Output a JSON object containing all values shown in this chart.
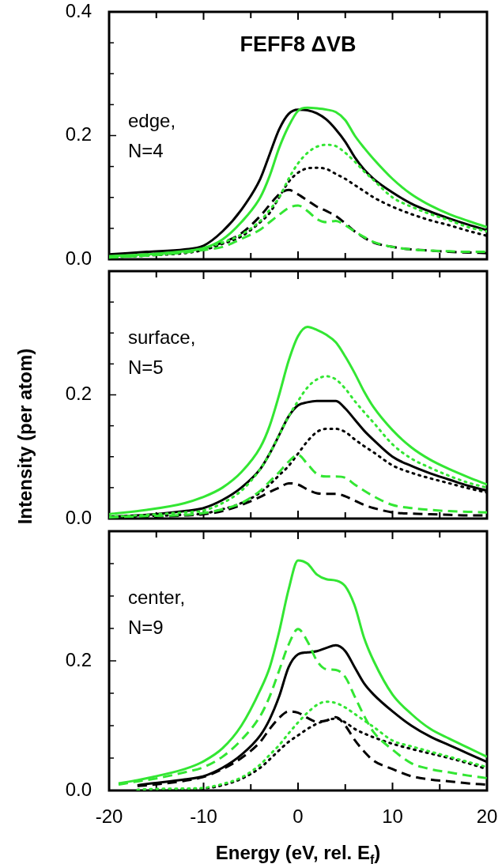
{
  "chart_data": [
    {
      "type": "line",
      "title": "FEFF8 ΔVB",
      "annotations": [
        "edge,\nN=4"
      ],
      "tick_labels": "y",
      "xlim": [
        -20,
        20
      ],
      "xticks": [
        -20,
        {
          "value": -15,
          "label": null
        },
        -10,
        {
          "value": -5,
          "label": null
        },
        0,
        {
          "value": 5,
          "label": null
        },
        10,
        {
          "value": 15,
          "label": null
        },
        20
      ],
      "ylim": [
        0,
        0.4
      ],
      "yticks": [
        {
          "value": 0,
          "label": "0.0"
        },
        {
          "value": 0.05,
          "label": null
        },
        {
          "value": 0.1,
          "label": null
        },
        {
          "value": 0.15,
          "label": null
        },
        {
          "value": 0.2,
          "label": "0.2"
        },
        {
          "value": 0.25,
          "label": null
        },
        {
          "value": 0.3,
          "label": null
        },
        {
          "value": 0.35,
          "label": null
        },
        {
          "value": 0.4,
          "label": "0.4"
        }
      ],
      "x": [
        -20,
        -16,
        -12,
        -10,
        -8,
        -6,
        -4,
        -3,
        -2,
        -1,
        0,
        1,
        2,
        3,
        4,
        5,
        6,
        7,
        8,
        10,
        12,
        14,
        16,
        18,
        20
      ],
      "series": [
        {
          "color": "#33e633",
          "line_style": "solid",
          "values": [
            0.005,
            0.008,
            0.013,
            0.018,
            0.032,
            0.06,
            0.1,
            0.135,
            0.18,
            0.215,
            0.24,
            0.245,
            0.244,
            0.242,
            0.238,
            0.225,
            0.2,
            0.18,
            0.162,
            0.13,
            0.105,
            0.087,
            0.073,
            0.062,
            0.052
          ]
        },
        {
          "color": "#33e633",
          "line_style": "dotted",
          "values": [
            0.003,
            0.006,
            0.012,
            0.018,
            0.027,
            0.04,
            0.062,
            0.08,
            0.1,
            0.13,
            0.155,
            0.172,
            0.182,
            0.185,
            0.183,
            0.172,
            0.158,
            0.142,
            0.128,
            0.1,
            0.085,
            0.073,
            0.063,
            0.052,
            0.045
          ]
        },
        {
          "color": "#33e633",
          "line_style": "dashed",
          "values": [
            0.003,
            0.006,
            0.011,
            0.015,
            0.02,
            0.033,
            0.048,
            0.06,
            0.072,
            0.083,
            0.087,
            0.078,
            0.065,
            0.06,
            0.062,
            0.055,
            0.045,
            0.036,
            0.028,
            0.02,
            0.016,
            0.014,
            0.013,
            0.012,
            0.012
          ]
        },
        {
          "color": "#000000",
          "line_style": "solid",
          "values": [
            0.008,
            0.012,
            0.016,
            0.022,
            0.045,
            0.08,
            0.13,
            0.17,
            0.21,
            0.235,
            0.242,
            0.241,
            0.236,
            0.226,
            0.21,
            0.19,
            0.165,
            0.145,
            0.13,
            0.108,
            0.09,
            0.077,
            0.066,
            0.056,
            0.047
          ]
        },
        {
          "color": "#000000",
          "line_style": "dotted",
          "values": [
            0.003,
            0.006,
            0.01,
            0.015,
            0.025,
            0.037,
            0.06,
            0.075,
            0.1,
            0.125,
            0.14,
            0.147,
            0.148,
            0.146,
            0.138,
            0.13,
            0.12,
            0.11,
            0.1,
            0.085,
            0.073,
            0.063,
            0.055,
            0.046,
            0.038
          ]
        },
        {
          "color": "#000000",
          "line_style": "dashed",
          "values": [
            0.004,
            0.008,
            0.013,
            0.018,
            0.027,
            0.042,
            0.07,
            0.088,
            0.105,
            0.112,
            0.105,
            0.095,
            0.085,
            0.078,
            0.07,
            0.058,
            0.045,
            0.035,
            0.027,
            0.02,
            0.016,
            0.014,
            0.012,
            0.011,
            0.01
          ]
        }
      ]
    },
    {
      "type": "line",
      "ylabel": "Intensity (per atom)",
      "annotations": [
        "surface,\nN=5"
      ],
      "tick_labels": "y",
      "xlim": [
        -20,
        20
      ],
      "xticks": [
        -20,
        {
          "value": -15,
          "label": null
        },
        -10,
        {
          "value": -5,
          "label": null
        },
        0,
        {
          "value": 5,
          "label": null
        },
        10,
        {
          "value": 15,
          "label": null
        },
        20
      ],
      "ylim": [
        0,
        0.4
      ],
      "yticks": [
        {
          "value": 0,
          "label": "0.0"
        },
        {
          "value": 0.05,
          "label": null
        },
        {
          "value": 0.1,
          "label": null
        },
        {
          "value": 0.15,
          "label": null
        },
        {
          "value": 0.2,
          "label": "0.2"
        },
        {
          "value": 0.25,
          "label": null
        },
        {
          "value": 0.3,
          "label": null
        },
        {
          "value": 0.35,
          "label": null
        },
        {
          "value": 0.4,
          "label": null
        }
      ],
      "x": [
        -20,
        -16,
        -12,
        -10,
        -8,
        -6,
        -4,
        -3,
        -2,
        -1,
        0,
        1,
        2,
        3,
        4,
        5,
        6,
        7,
        8,
        10,
        12,
        14,
        16,
        18,
        20
      ],
      "series": [
        {
          "color": "#33e633",
          "line_style": "solid",
          "values": [
            0.007,
            0.014,
            0.025,
            0.035,
            0.05,
            0.075,
            0.115,
            0.15,
            0.2,
            0.255,
            0.295,
            0.31,
            0.305,
            0.297,
            0.285,
            0.262,
            0.235,
            0.205,
            0.18,
            0.143,
            0.115,
            0.095,
            0.08,
            0.067,
            0.055
          ]
        },
        {
          "color": "#33e633",
          "line_style": "dotted",
          "values": [
            0.003,
            0.006,
            0.01,
            0.013,
            0.025,
            0.045,
            0.08,
            0.105,
            0.135,
            0.165,
            0.19,
            0.212,
            0.225,
            0.23,
            0.225,
            0.21,
            0.19,
            0.172,
            0.155,
            0.12,
            0.097,
            0.082,
            0.069,
            0.058,
            0.05
          ]
        },
        {
          "color": "#33e633",
          "line_style": "dashed",
          "values": [
            0.002,
            0.004,
            0.006,
            0.009,
            0.015,
            0.025,
            0.045,
            0.06,
            0.075,
            0.092,
            0.103,
            0.088,
            0.072,
            0.068,
            0.068,
            0.066,
            0.055,
            0.045,
            0.036,
            0.022,
            0.017,
            0.014,
            0.012,
            0.011,
            0.01
          ]
        },
        {
          "color": "#000000",
          "line_style": "solid",
          "values": [
            0.003,
            0.006,
            0.012,
            0.017,
            0.03,
            0.05,
            0.08,
            0.105,
            0.135,
            0.165,
            0.183,
            0.188,
            0.19,
            0.19,
            0.19,
            0.178,
            0.16,
            0.142,
            0.127,
            0.1,
            0.085,
            0.073,
            0.063,
            0.053,
            0.045
          ]
        },
        {
          "color": "#000000",
          "line_style": "dotted",
          "values": [
            0.002,
            0.004,
            0.006,
            0.008,
            0.015,
            0.025,
            0.042,
            0.055,
            0.07,
            0.085,
            0.105,
            0.125,
            0.14,
            0.145,
            0.145,
            0.14,
            0.128,
            0.117,
            0.107,
            0.086,
            0.074,
            0.065,
            0.057,
            0.049,
            0.042
          ]
        },
        {
          "color": "#000000",
          "line_style": "dashed",
          "values": [
            0.002,
            0.003,
            0.005,
            0.007,
            0.012,
            0.022,
            0.035,
            0.043,
            0.05,
            0.057,
            0.055,
            0.047,
            0.041,
            0.04,
            0.04,
            0.036,
            0.029,
            0.022,
            0.017,
            0.01,
            0.008,
            0.007,
            0.006,
            0.005,
            0.005
          ]
        }
      ]
    },
    {
      "type": "line",
      "xlabel": "Energy (eV, rel. E$_{f}$)",
      "annotations": [
        "center,\nN=9"
      ],
      "xlim": [
        -20,
        20
      ],
      "xticks": [
        -20,
        {
          "value": -15,
          "label": null
        },
        -10,
        {
          "value": -5,
          "label": null
        },
        0,
        {
          "value": 5,
          "label": null
        },
        10,
        {
          "value": 15,
          "label": null
        },
        20
      ],
      "ylim": [
        0,
        0.4
      ],
      "yticks": [
        {
          "value": 0,
          "label": "0.0"
        },
        {
          "value": 0.05,
          "label": null
        },
        {
          "value": 0.1,
          "label": null
        },
        {
          "value": 0.15,
          "label": null
        },
        {
          "value": 0.2,
          "label": "0.2"
        },
        {
          "value": 0.25,
          "label": null
        },
        {
          "value": 0.3,
          "label": null
        },
        {
          "value": 0.35,
          "label": null
        },
        {
          "value": 0.4,
          "label": null
        }
      ],
      "x": [
        -19,
        -17,
        -16,
        -12,
        -10,
        -8,
        -6,
        -4,
        -3,
        -2,
        -1,
        0,
        1,
        2,
        3,
        4,
        5,
        6,
        7,
        8,
        10,
        12,
        14,
        16,
        18,
        20
      ],
      "series": [
        {
          "color": "#33e633",
          "line_style": "solid",
          "values": [
            0.011,
            0.016,
            0.019,
            0.033,
            0.045,
            0.065,
            0.1,
            0.155,
            0.19,
            0.245,
            0.31,
            0.355,
            0.35,
            0.333,
            0.326,
            0.324,
            0.315,
            0.285,
            0.235,
            0.2,
            0.148,
            0.118,
            0.095,
            0.08,
            0.066,
            0.052
          ]
        },
        {
          "color": "#33e633",
          "line_style": "dotted",
          "values": [
            null,
            0.001,
            0.002,
            0.003,
            0.004,
            0.01,
            0.02,
            0.04,
            0.055,
            0.07,
            0.088,
            0.105,
            0.12,
            0.132,
            0.137,
            0.135,
            0.128,
            0.118,
            0.108,
            0.098,
            0.077,
            0.068,
            0.06,
            0.052,
            0.044,
            0.036
          ]
        },
        {
          "color": "#33e633",
          "line_style": "dashed",
          "values": [
            0.009,
            0.014,
            0.016,
            0.028,
            0.036,
            0.052,
            0.078,
            0.115,
            0.145,
            0.185,
            0.225,
            0.249,
            0.23,
            0.2,
            0.187,
            0.186,
            0.175,
            0.145,
            0.115,
            0.09,
            0.063,
            0.042,
            0.033,
            0.028,
            0.023,
            0.019
          ]
        },
        {
          "color": "#000000",
          "line_style": "solid",
          "values": [
            null,
            0.008,
            0.01,
            0.017,
            0.022,
            0.035,
            0.055,
            0.085,
            0.11,
            0.145,
            0.19,
            0.21,
            0.213,
            0.215,
            0.22,
            0.224,
            0.215,
            0.19,
            0.165,
            0.148,
            0.122,
            0.1,
            0.083,
            0.07,
            0.057,
            0.044
          ]
        },
        {
          "color": "#000000",
          "line_style": "dotted",
          "values": [
            null,
            0.001,
            0.001,
            0.002,
            0.003,
            0.008,
            0.018,
            0.035,
            0.048,
            0.062,
            0.075,
            0.085,
            0.095,
            0.103,
            0.108,
            0.111,
            0.105,
            0.095,
            0.088,
            0.082,
            0.072,
            0.064,
            0.057,
            0.05,
            0.042,
            0.033
          ]
        },
        {
          "color": "#000000",
          "line_style": "dashed",
          "values": [
            null,
            0.007,
            0.008,
            0.015,
            0.021,
            0.033,
            0.05,
            0.075,
            0.095,
            0.112,
            0.122,
            0.12,
            0.112,
            0.106,
            0.108,
            0.113,
            0.1,
            0.078,
            0.06,
            0.046,
            0.033,
            0.022,
            0.017,
            0.014,
            0.011,
            0.009
          ]
        }
      ]
    }
  ]
}
